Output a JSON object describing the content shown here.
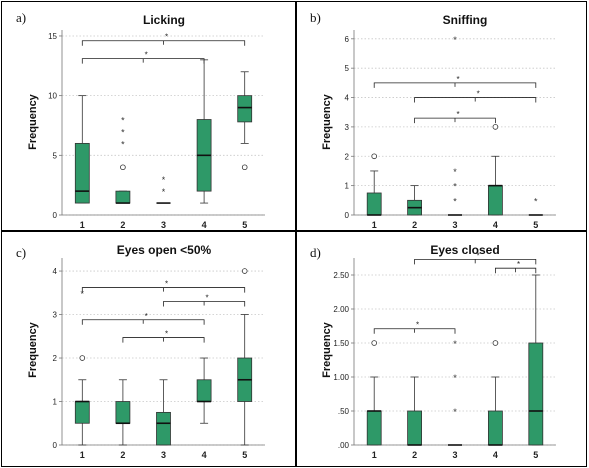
{
  "chart_data": [
    {
      "type": "box",
      "panel_label": "a)",
      "title": "Licking",
      "ylabel": "Frequency",
      "categories": [
        "1",
        "2",
        "3",
        "4",
        "5"
      ],
      "ylim": [
        0,
        15.5
      ],
      "yticks": [
        0,
        5,
        10,
        15
      ],
      "ytick_labels": [
        "0",
        "5",
        "10",
        "15"
      ],
      "boxes": [
        {
          "min": 1,
          "q1": 1,
          "median": 2,
          "q3": 6,
          "max": 10
        },
        {
          "min": 1,
          "q1": 1,
          "median": 1,
          "q3": 2,
          "max": 2
        },
        {
          "min": 1,
          "q1": 1,
          "median": 1,
          "q3": 1,
          "max": 1
        },
        {
          "min": 1,
          "q1": 2,
          "median": 5,
          "q3": 8,
          "max": 13
        },
        {
          "min": 6,
          "q1": 7.8,
          "median": 9,
          "q3": 10,
          "max": 12
        }
      ],
      "outliers": [
        {
          "cat": 2,
          "value": 4,
          "kind": "circle"
        },
        {
          "cat": 5,
          "value": 4,
          "kind": "circle"
        }
      ],
      "extremes": [
        {
          "cat": 2,
          "value": 6,
          "label": "*"
        },
        {
          "cat": 2,
          "value": 7,
          "label": "*"
        },
        {
          "cat": 2,
          "value": 8,
          "label": "*"
        },
        {
          "cat": 3,
          "value": 2,
          "label": "*"
        },
        {
          "cat": 3,
          "value": 3,
          "label": "*"
        }
      ],
      "significance": [
        {
          "from": 1,
          "to": 5,
          "level": 14.6,
          "label": "*"
        },
        {
          "from": 1,
          "to": 4,
          "level": 13.1,
          "label": "*"
        }
      ]
    },
    {
      "type": "box",
      "panel_label": "b)",
      "title": "Sniffing",
      "ylabel": "Frequency",
      "categories": [
        "1",
        "2",
        "3",
        "4",
        "5"
      ],
      "ylim": [
        0,
        6.3
      ],
      "yticks": [
        0,
        1,
        2,
        3,
        4,
        5,
        6
      ],
      "ytick_labels": [
        "0",
        "1",
        "2",
        "3",
        "4",
        "5",
        "6"
      ],
      "boxes": [
        {
          "min": 0,
          "q1": 0,
          "median": 0,
          "q3": 0.75,
          "max": 1.5
        },
        {
          "min": 0,
          "q1": 0,
          "median": 0.25,
          "q3": 0.5,
          "max": 1
        },
        {
          "min": 0,
          "q1": 0,
          "median": 0,
          "q3": 0,
          "max": 0
        },
        {
          "min": 0,
          "q1": 0,
          "median": 1,
          "q3": 1,
          "max": 2
        },
        {
          "min": 0,
          "q1": 0,
          "median": 0,
          "q3": 0,
          "max": 0
        }
      ],
      "outliers": [
        {
          "cat": 1,
          "value": 2,
          "kind": "circle"
        },
        {
          "cat": 4,
          "value": 3,
          "kind": "circle"
        }
      ],
      "extremes": [
        {
          "cat": 3,
          "value": 0.5,
          "label": "*"
        },
        {
          "cat": 3,
          "value": 1,
          "label": "*"
        },
        {
          "cat": 3,
          "value": 1.5,
          "label": "*"
        },
        {
          "cat": 3,
          "value": 6,
          "label": "*"
        },
        {
          "cat": 5,
          "value": 0.5,
          "label": "*"
        }
      ],
      "significance": [
        {
          "from": 1,
          "to": 5,
          "level": 4.5,
          "label": "*"
        },
        {
          "from": 2,
          "to": 5,
          "level": 4.0,
          "label": "*"
        },
        {
          "from": 2,
          "to": 4,
          "level": 3.3,
          "label": "*"
        }
      ]
    },
    {
      "type": "box",
      "panel_label": "c)",
      "title": "Eyes open <50%",
      "ylabel": "Frequency",
      "categories": [
        "1",
        "2",
        "3",
        "4",
        "5"
      ],
      "ylim": [
        0,
        4.3
      ],
      "yticks": [
        0,
        1,
        2,
        3,
        4
      ],
      "ytick_labels": [
        "0",
        "1",
        "2",
        "3",
        "4"
      ],
      "boxes": [
        {
          "min": 0,
          "q1": 0.5,
          "median": 1,
          "q3": 1,
          "max": 1.5
        },
        {
          "min": 0,
          "q1": 0.5,
          "median": 0.5,
          "q3": 1,
          "max": 1.5
        },
        {
          "min": 0,
          "q1": 0,
          "median": 0.5,
          "q3": 0.75,
          "max": 1.5
        },
        {
          "min": 0.5,
          "q1": 1,
          "median": 1,
          "q3": 1.5,
          "max": 2
        },
        {
          "min": 0,
          "q1": 1,
          "median": 1.5,
          "q3": 2,
          "max": 3
        }
      ],
      "outliers": [
        {
          "cat": 1,
          "value": 2,
          "kind": "circle"
        },
        {
          "cat": 5,
          "value": 4,
          "kind": "circle"
        }
      ],
      "extremes": [
        {
          "cat": 1,
          "value": 3.5,
          "label": "*"
        }
      ],
      "significance": [
        {
          "from": 1,
          "to": 5,
          "level": 3.62,
          "label": "*"
        },
        {
          "from": 3,
          "to": 5,
          "level": 3.3,
          "label": "*"
        },
        {
          "from": 1,
          "to": 4,
          "level": 2.88,
          "label": "*"
        },
        {
          "from": 2,
          "to": 4,
          "level": 2.47,
          "label": "*"
        }
      ]
    },
    {
      "type": "box",
      "panel_label": "d)",
      "title": "Eyes closed",
      "ylabel": "Frequency",
      "categories": [
        "1",
        "2",
        "3",
        "4",
        "5"
      ],
      "ylim": [
        0,
        2.75
      ],
      "yticks": [
        0,
        0.5,
        1,
        1.5,
        2,
        2.5
      ],
      "ytick_labels": [
        ".00",
        ".50",
        "1.00",
        "1.50",
        "2.00",
        "2.50"
      ],
      "boxes": [
        {
          "min": 0,
          "q1": 0,
          "median": 0.5,
          "q3": 0.5,
          "max": 1
        },
        {
          "min": 0,
          "q1": 0,
          "median": 0,
          "q3": 0.5,
          "max": 1
        },
        {
          "min": 0,
          "q1": 0,
          "median": 0,
          "q3": 0,
          "max": 0
        },
        {
          "min": 0,
          "q1": 0,
          "median": 0,
          "q3": 0.5,
          "max": 1
        },
        {
          "min": 0,
          "q1": 0,
          "median": 0.5,
          "q3": 1.5,
          "max": 2.5
        }
      ],
      "outliers": [
        {
          "cat": 1,
          "value": 1.5,
          "kind": "circle"
        },
        {
          "cat": 4,
          "value": 1.5,
          "kind": "circle"
        }
      ],
      "extremes": [
        {
          "cat": 3,
          "value": 0.5,
          "label": "*"
        },
        {
          "cat": 3,
          "value": 1,
          "label": "*"
        },
        {
          "cat": 3,
          "value": 1.5,
          "label": "*"
        }
      ],
      "significance": [
        {
          "from": 2,
          "to": 5,
          "level": 2.73,
          "label": "*"
        },
        {
          "from": 4,
          "to": 5,
          "level": 2.6,
          "label": "*"
        },
        {
          "from": 1,
          "to": 3,
          "level": 1.71,
          "label": "*"
        }
      ]
    }
  ]
}
